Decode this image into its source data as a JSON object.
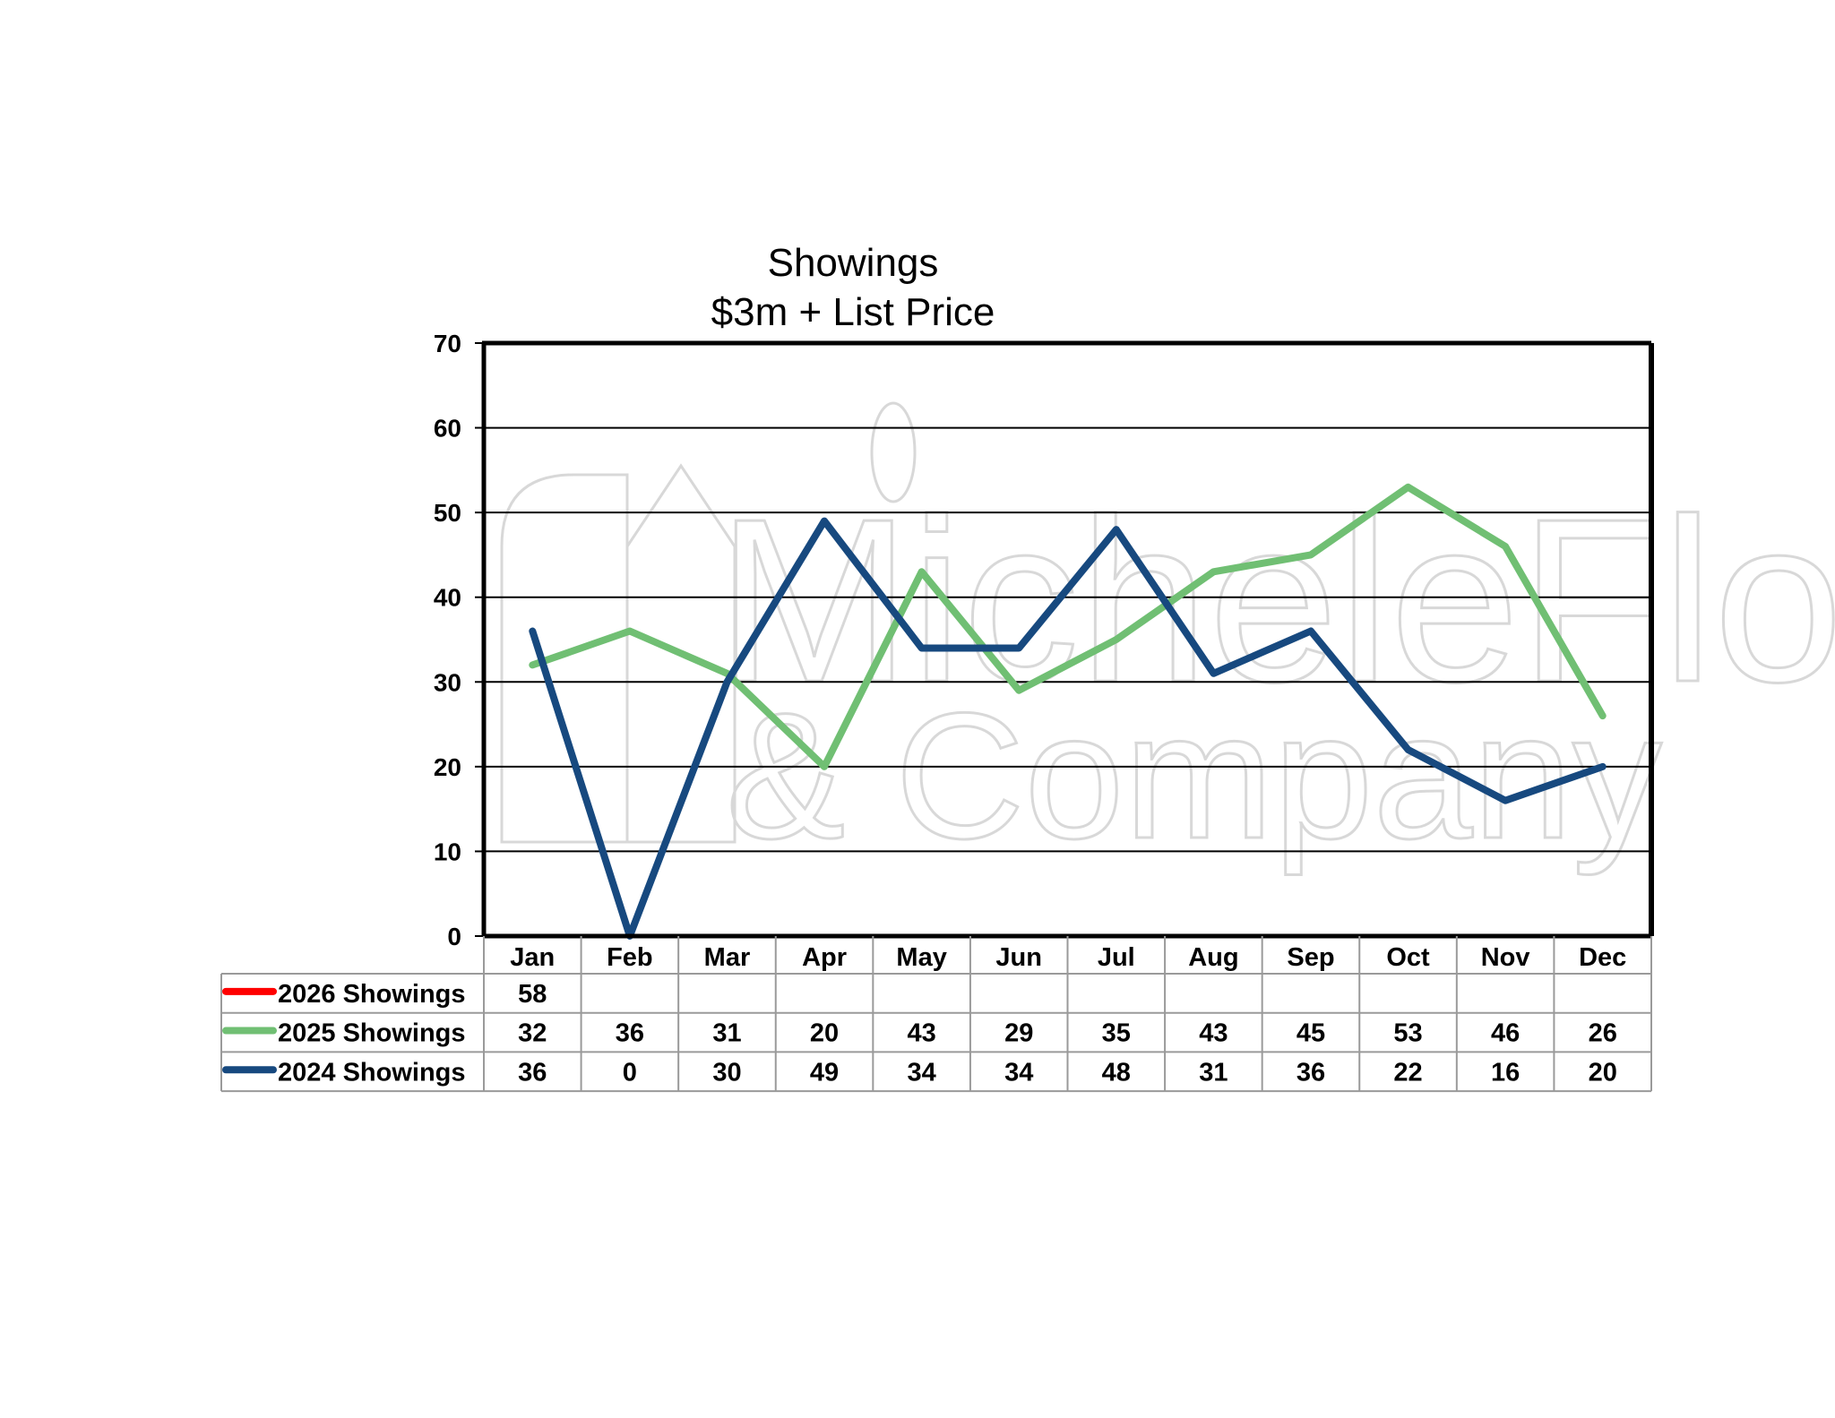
{
  "chart_data": {
    "type": "line",
    "title": [
      "Showings",
      "$3m + List Price"
    ],
    "categories": [
      "Jan",
      "Feb",
      "Mar",
      "Apr",
      "May",
      "Jun",
      "Jul",
      "Aug",
      "Sep",
      "Oct",
      "Nov",
      "Dec"
    ],
    "y_ticks": [
      "0",
      "10",
      "20",
      "30",
      "40",
      "50",
      "60",
      "70"
    ],
    "ylim": [
      0,
      70
    ],
    "grid": true,
    "legend": "data-table-below",
    "watermark": [
      "MicheleFlory",
      "& Company"
    ],
    "series": [
      {
        "name": "2026 Showings",
        "color": "#ff0000",
        "values": [
          58,
          null,
          null,
          null,
          null,
          null,
          null,
          null,
          null,
          null,
          null,
          null
        ],
        "labels": [
          "58",
          "",
          "",
          "",
          "",
          "",
          "",
          "",
          "",
          "",
          "",
          ""
        ]
      },
      {
        "name": "2025 Showings",
        "color": "#70bf73",
        "values": [
          32,
          36,
          31,
          20,
          43,
          29,
          35,
          43,
          45,
          53,
          46,
          26
        ],
        "labels": [
          "32",
          "36",
          "31",
          "20",
          "43",
          "29",
          "35",
          "43",
          "45",
          "53",
          "46",
          "26"
        ]
      },
      {
        "name": "2024 Showings",
        "color": "#17497f",
        "values": [
          36,
          0,
          30,
          49,
          34,
          34,
          48,
          31,
          36,
          22,
          16,
          20
        ],
        "labels": [
          "36",
          "0",
          "30",
          "49",
          "34",
          "34",
          "48",
          "31",
          "36",
          "22",
          "16",
          "20"
        ]
      }
    ]
  }
}
